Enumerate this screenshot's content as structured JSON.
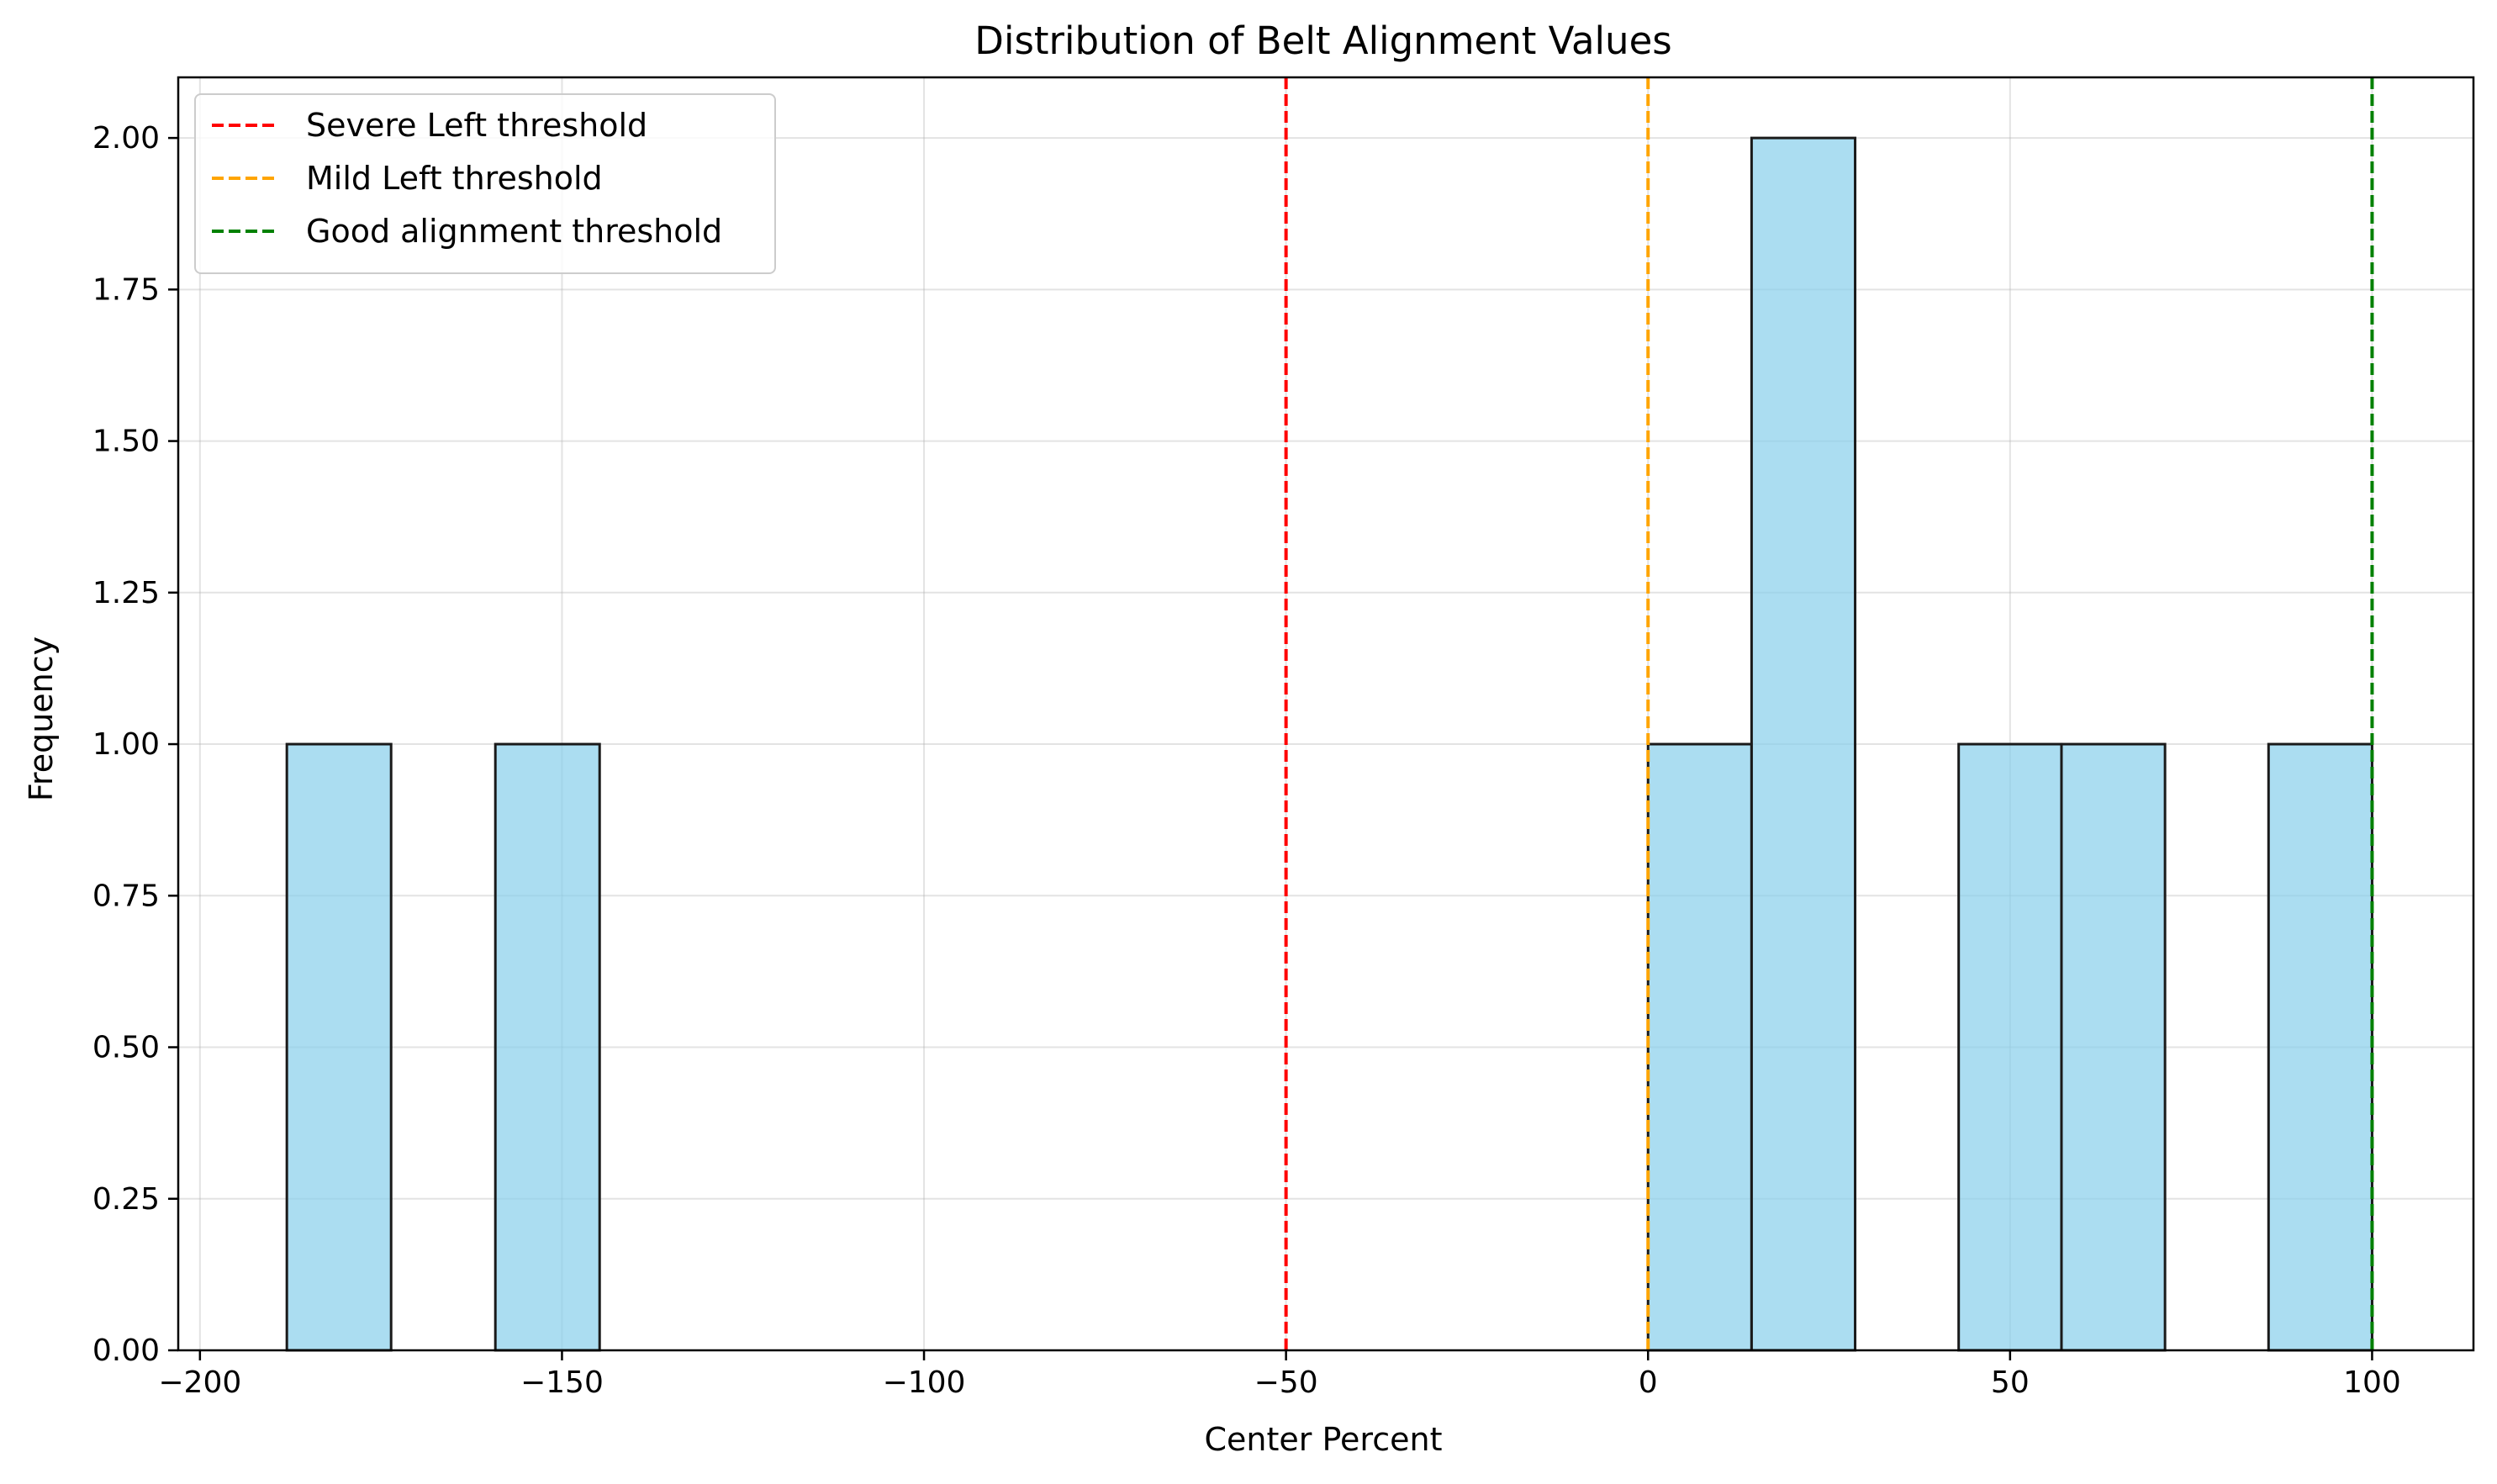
{
  "chart_data": {
    "type": "bar",
    "title": "Distribution of Belt Alignment Values",
    "xlabel": "Center Percent",
    "ylabel": "Frequency",
    "xlim": [
      -203,
      114
    ],
    "ylim": [
      0,
      2.1
    ],
    "xticks": [
      -200,
      -150,
      -100,
      -50,
      0,
      50,
      100
    ],
    "xtick_labels": [
      "−200",
      "−150",
      "−100",
      "−50",
      "0",
      "50",
      "100"
    ],
    "yticks": [
      0,
      0.25,
      0.5,
      0.75,
      1.0,
      1.25,
      1.5,
      1.75,
      2.0
    ],
    "ytick_labels": [
      "0.00",
      "0.25",
      "0.50",
      "0.75",
      "1.00",
      "1.25",
      "1.50",
      "1.75",
      "2.00"
    ],
    "grid": true,
    "bar_color": "#87ceeb",
    "bar_edge_color": "#1a1a1a",
    "bins": [
      {
        "x0": -188.0,
        "x1": -173.6,
        "count": 1
      },
      {
        "x0": -159.2,
        "x1": -144.8,
        "count": 1
      },
      {
        "x0": 0.0,
        "x1": 14.3,
        "count": 1
      },
      {
        "x0": 14.3,
        "x1": 28.6,
        "count": 2
      },
      {
        "x0": 42.9,
        "x1": 57.1,
        "count": 1
      },
      {
        "x0": 57.1,
        "x1": 71.4,
        "count": 1
      },
      {
        "x0": 85.7,
        "x1": 100.0,
        "count": 1
      }
    ],
    "thresholds": [
      {
        "name": "Severe Left threshold",
        "x": -50,
        "color": "#ff0000"
      },
      {
        "name": "Mild Left threshold",
        "x": 0,
        "color": "#ffa500"
      },
      {
        "name": "Good alignment threshold",
        "x": 100,
        "color": "#008000"
      }
    ],
    "legend_position": "top-left"
  }
}
